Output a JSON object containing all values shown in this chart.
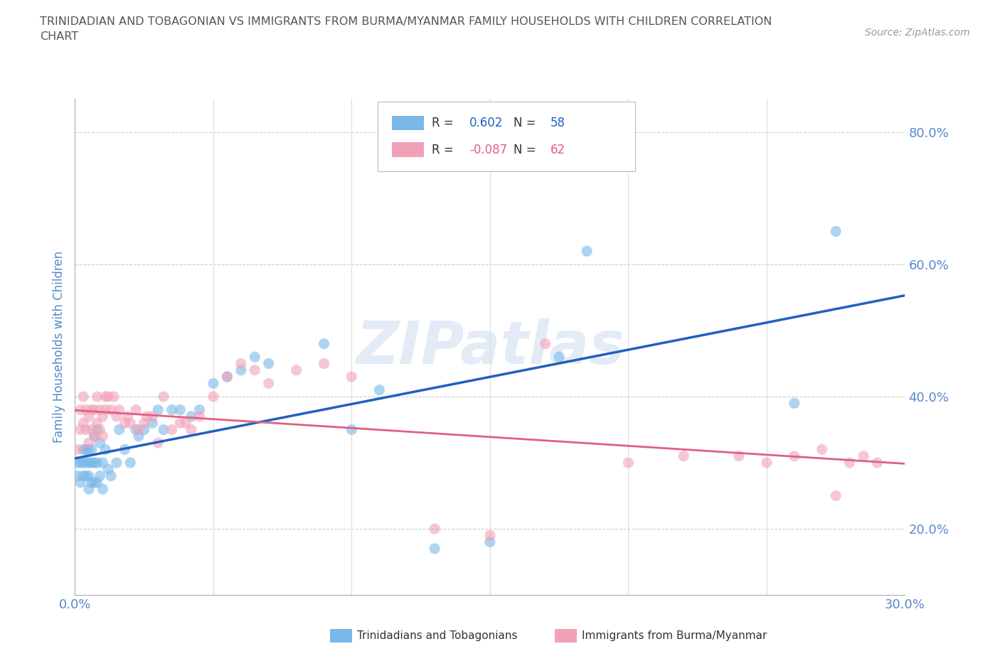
{
  "title_line1": "TRINIDADIAN AND TOBAGONIAN VS IMMIGRANTS FROM BURMA/MYANMAR FAMILY HOUSEHOLDS WITH CHILDREN CORRELATION",
  "title_line2": "CHART",
  "source_text": "Source: ZipAtlas.com",
  "ylabel": "Family Households with Children",
  "xlim": [
    0.0,
    0.3
  ],
  "ylim": [
    0.1,
    0.85
  ],
  "xticks": [
    0.0,
    0.05,
    0.1,
    0.15,
    0.2,
    0.25,
    0.3
  ],
  "xticklabels": [
    "0.0%",
    "",
    "",
    "",
    "",
    "",
    "30.0%"
  ],
  "ytick_positions": [
    0.2,
    0.4,
    0.6,
    0.8
  ],
  "ytick_labels": [
    "20.0%",
    "40.0%",
    "60.0%",
    "80.0%"
  ],
  "blue_color": "#7ab8e8",
  "pink_color": "#f2a0b8",
  "blue_line_color": "#2060c0",
  "pink_line_color": "#e06080",
  "R_blue": 0.602,
  "N_blue": 58,
  "R_pink": -0.087,
  "N_pink": 62,
  "watermark": "ZIPatlas",
  "legend_label_blue": "Trinidadians and Tobagonians",
  "legend_label_pink": "Immigrants from Burma/Myanmar",
  "blue_scatter_x": [
    0.001,
    0.001,
    0.002,
    0.002,
    0.003,
    0.003,
    0.003,
    0.004,
    0.004,
    0.004,
    0.005,
    0.005,
    0.005,
    0.005,
    0.006,
    0.006,
    0.006,
    0.007,
    0.007,
    0.007,
    0.008,
    0.008,
    0.008,
    0.009,
    0.009,
    0.01,
    0.01,
    0.011,
    0.012,
    0.013,
    0.015,
    0.016,
    0.018,
    0.02,
    0.022,
    0.023,
    0.025,
    0.028,
    0.03,
    0.032,
    0.035,
    0.038,
    0.042,
    0.045,
    0.05,
    0.055,
    0.06,
    0.065,
    0.07,
    0.09,
    0.1,
    0.11,
    0.13,
    0.15,
    0.175,
    0.185,
    0.26,
    0.275
  ],
  "blue_scatter_y": [
    0.28,
    0.3,
    0.27,
    0.3,
    0.28,
    0.3,
    0.32,
    0.28,
    0.3,
    0.32,
    0.26,
    0.28,
    0.3,
    0.32,
    0.27,
    0.3,
    0.32,
    0.27,
    0.3,
    0.34,
    0.27,
    0.3,
    0.35,
    0.28,
    0.33,
    0.26,
    0.3,
    0.32,
    0.29,
    0.28,
    0.3,
    0.35,
    0.32,
    0.3,
    0.35,
    0.34,
    0.35,
    0.36,
    0.38,
    0.35,
    0.38,
    0.38,
    0.37,
    0.38,
    0.42,
    0.43,
    0.44,
    0.46,
    0.45,
    0.48,
    0.35,
    0.41,
    0.17,
    0.18,
    0.46,
    0.62,
    0.39,
    0.65
  ],
  "pink_scatter_x": [
    0.001,
    0.002,
    0.002,
    0.003,
    0.003,
    0.004,
    0.004,
    0.005,
    0.005,
    0.006,
    0.006,
    0.007,
    0.007,
    0.008,
    0.008,
    0.009,
    0.009,
    0.01,
    0.01,
    0.011,
    0.011,
    0.012,
    0.013,
    0.014,
    0.015,
    0.016,
    0.018,
    0.019,
    0.02,
    0.022,
    0.023,
    0.025,
    0.026,
    0.028,
    0.03,
    0.032,
    0.035,
    0.038,
    0.04,
    0.042,
    0.045,
    0.05,
    0.055,
    0.06,
    0.065,
    0.07,
    0.08,
    0.09,
    0.1,
    0.13,
    0.15,
    0.17,
    0.2,
    0.22,
    0.24,
    0.25,
    0.26,
    0.27,
    0.275,
    0.28,
    0.285,
    0.29
  ],
  "pink_scatter_y": [
    0.32,
    0.35,
    0.38,
    0.36,
    0.4,
    0.35,
    0.38,
    0.33,
    0.37,
    0.35,
    0.38,
    0.34,
    0.38,
    0.36,
    0.4,
    0.35,
    0.38,
    0.34,
    0.37,
    0.38,
    0.4,
    0.4,
    0.38,
    0.4,
    0.37,
    0.38,
    0.36,
    0.37,
    0.36,
    0.38,
    0.35,
    0.36,
    0.37,
    0.37,
    0.33,
    0.4,
    0.35,
    0.36,
    0.36,
    0.35,
    0.37,
    0.4,
    0.43,
    0.45,
    0.44,
    0.42,
    0.44,
    0.45,
    0.43,
    0.2,
    0.19,
    0.48,
    0.3,
    0.31,
    0.31,
    0.3,
    0.31,
    0.32,
    0.25,
    0.3,
    0.31,
    0.3
  ],
  "background_color": "#ffffff",
  "grid_color": "#cccccc",
  "title_color": "#555555",
  "axis_label_color": "#5588cc",
  "tick_color": "#5588cc"
}
